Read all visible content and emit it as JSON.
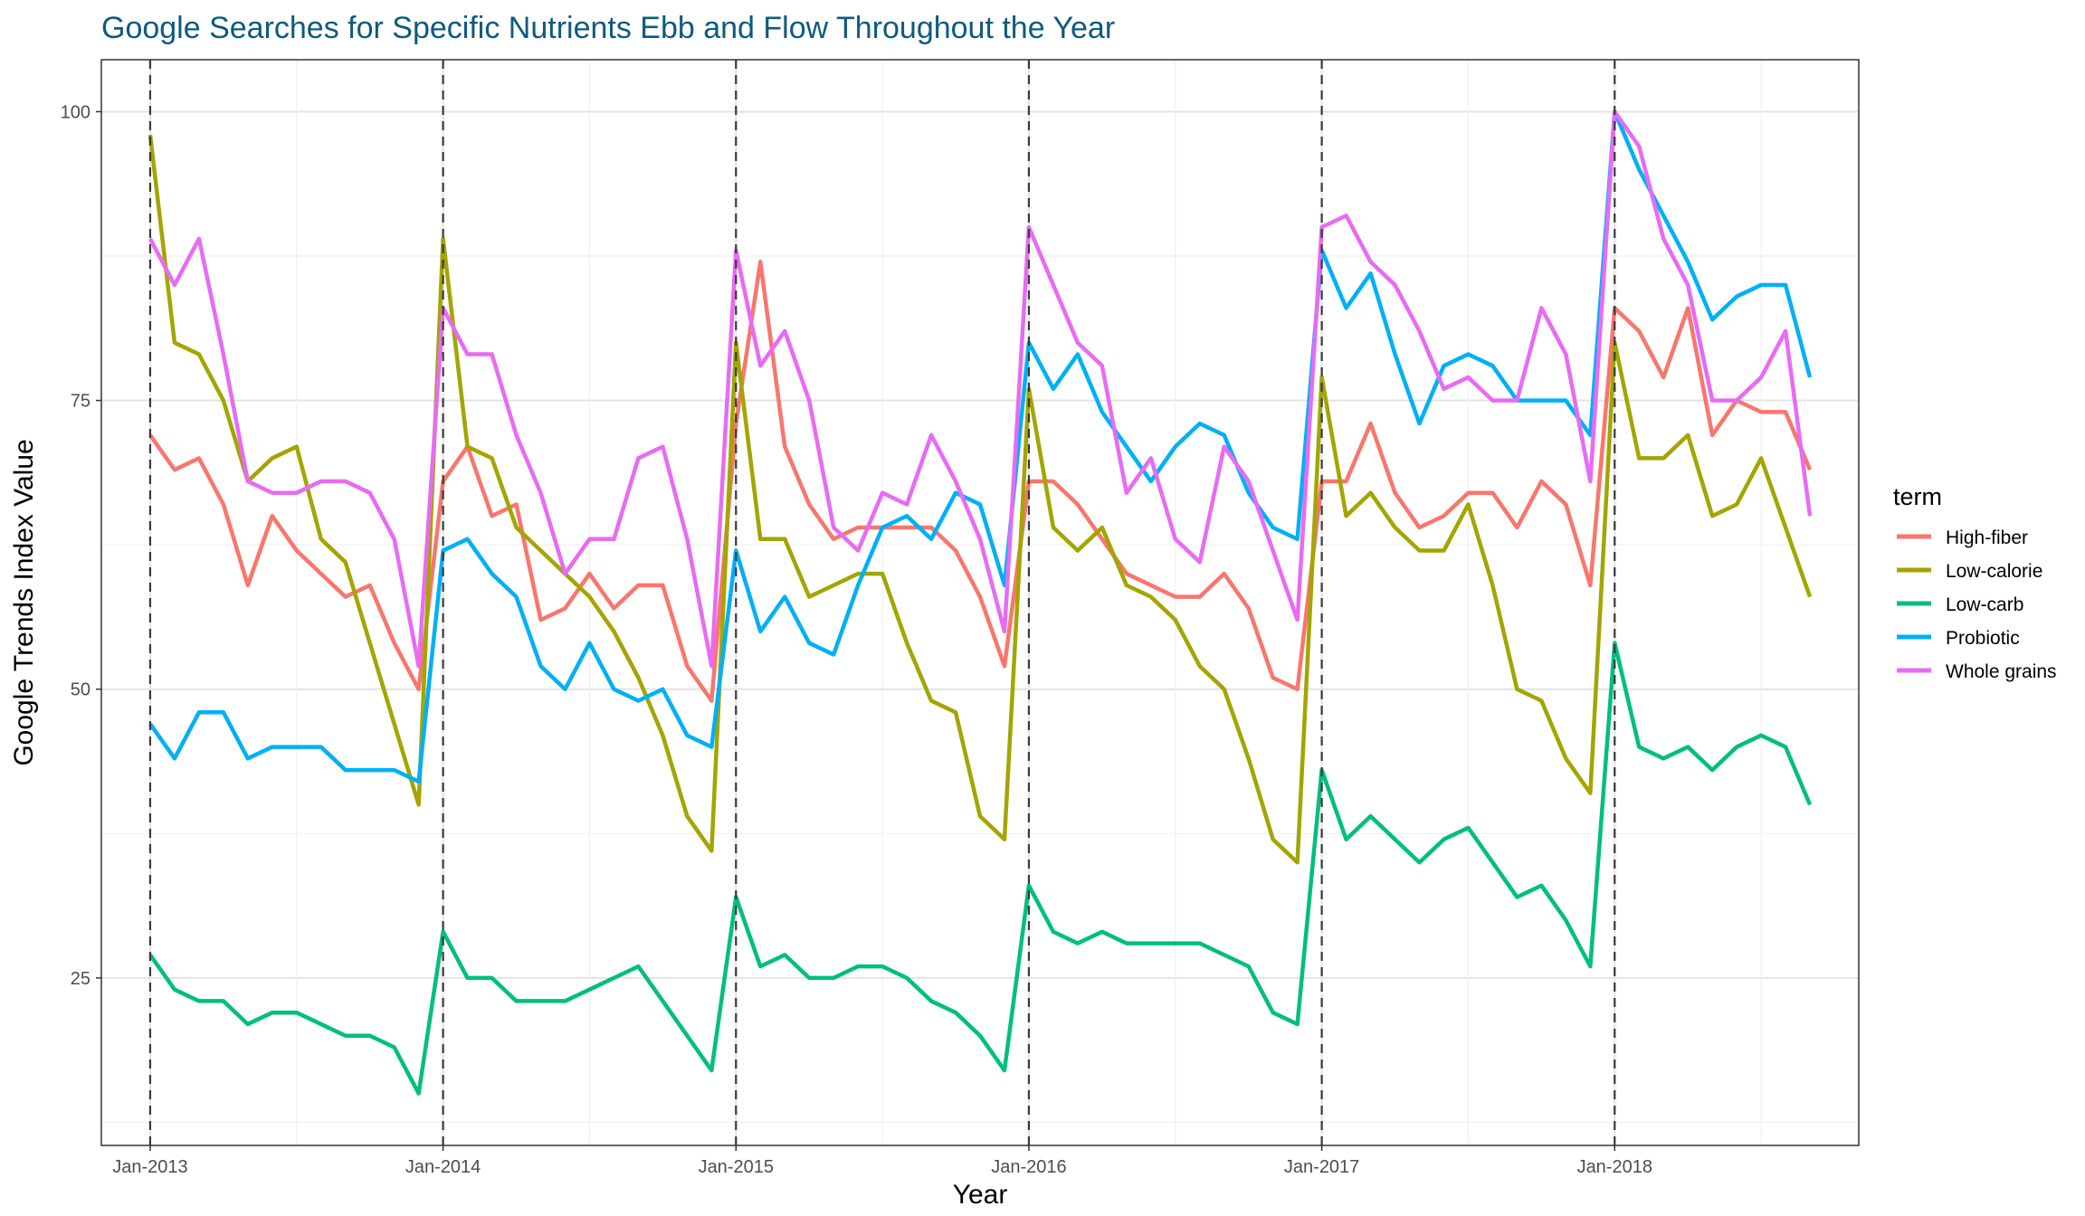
{
  "chart_data": {
    "type": "line",
    "title": "Google Searches for Specific Nutrients Ebb and Flow Throughout the Year",
    "xlabel": "Year",
    "ylabel": "Google Trends Index Value",
    "x_tick_labels": [
      "Jan-2013",
      "Jan-2014",
      "Jan-2015",
      "Jan-2016",
      "Jan-2017",
      "Jan-2018"
    ],
    "y_ticks": [
      25,
      50,
      75,
      100
    ],
    "y_tick_labels": [
      "25",
      "50",
      "75",
      "100"
    ],
    "ylim": [
      10.5,
      104.5
    ],
    "xlim": [
      "2012-11",
      "2018-11"
    ],
    "x": [
      "2013-01",
      "2013-02",
      "2013-03",
      "2013-04",
      "2013-05",
      "2013-06",
      "2013-07",
      "2013-08",
      "2013-09",
      "2013-10",
      "2013-11",
      "2013-12",
      "2014-01",
      "2014-02",
      "2014-03",
      "2014-04",
      "2014-05",
      "2014-06",
      "2014-07",
      "2014-08",
      "2014-09",
      "2014-10",
      "2014-11",
      "2014-12",
      "2015-01",
      "2015-02",
      "2015-03",
      "2015-04",
      "2015-05",
      "2015-06",
      "2015-07",
      "2015-08",
      "2015-09",
      "2015-10",
      "2015-11",
      "2015-12",
      "2016-01",
      "2016-02",
      "2016-03",
      "2016-04",
      "2016-05",
      "2016-06",
      "2016-07",
      "2016-08",
      "2016-09",
      "2016-10",
      "2016-11",
      "2016-12",
      "2017-01",
      "2017-02",
      "2017-03",
      "2017-04",
      "2017-05",
      "2017-06",
      "2017-07",
      "2017-08",
      "2017-09",
      "2017-10",
      "2017-11",
      "2017-12",
      "2018-01",
      "2018-02",
      "2018-03",
      "2018-04",
      "2018-05",
      "2018-06",
      "2018-07",
      "2018-08",
      "2018-09"
    ],
    "vlines": [
      "2013-01",
      "2014-01",
      "2015-01",
      "2016-01",
      "2017-01",
      "2018-01"
    ],
    "grid": true,
    "legend_title": "term",
    "legend_position": "right",
    "series": [
      {
        "name": "High-fiber",
        "color": "#F8766D",
        "values": [
          72,
          69,
          70,
          66,
          59,
          65,
          62,
          60,
          58,
          59,
          54,
          50,
          68,
          71,
          65,
          66,
          56,
          57,
          60,
          57,
          59,
          59,
          52,
          49,
          73,
          87,
          71,
          66,
          63,
          64,
          64,
          64,
          64,
          62,
          58,
          52,
          68,
          68,
          66,
          63,
          60,
          59,
          58,
          58,
          60,
          57,
          51,
          50,
          68,
          68,
          73,
          67,
          64,
          65,
          67,
          67,
          64,
          68,
          66,
          59,
          83,
          81,
          77,
          83,
          72,
          75,
          74,
          74,
          69
        ]
      },
      {
        "name": "Low-calorie",
        "color": "#A3A500",
        "values": [
          98,
          80,
          79,
          75,
          68,
          70,
          71,
          63,
          61,
          54,
          47,
          40,
          89,
          71,
          70,
          64,
          62,
          60,
          58,
          55,
          51,
          46,
          39,
          36,
          80,
          63,
          63,
          58,
          59,
          60,
          60,
          54,
          49,
          48,
          39,
          37,
          76,
          64,
          62,
          64,
          59,
          58,
          56,
          52,
          50,
          44,
          37,
          35,
          77,
          65,
          67,
          64,
          62,
          62,
          66,
          59,
          50,
          49,
          44,
          41,
          80,
          70,
          70,
          72,
          65,
          66,
          70,
          64,
          58
        ]
      },
      {
        "name": "Low-carb",
        "color": "#00BF7D",
        "values": [
          27,
          24,
          23,
          23,
          21,
          22,
          22,
          21,
          20,
          20,
          19,
          15,
          29,
          25,
          25,
          23,
          23,
          23,
          24,
          25,
          26,
          23,
          20,
          17,
          32,
          26,
          27,
          25,
          25,
          26,
          26,
          25,
          23,
          22,
          20,
          17,
          33,
          29,
          28,
          29,
          28,
          28,
          28,
          28,
          27,
          26,
          22,
          21,
          43,
          37,
          39,
          37,
          35,
          37,
          38,
          35,
          32,
          33,
          30,
          26,
          54,
          45,
          44,
          45,
          43,
          45,
          46,
          45,
          40
        ]
      },
      {
        "name": "Probiotic",
        "color": "#00B0F6",
        "values": [
          47,
          44,
          48,
          48,
          44,
          45,
          45,
          45,
          43,
          43,
          43,
          42,
          62,
          63,
          60,
          58,
          52,
          50,
          54,
          50,
          49,
          50,
          46,
          45,
          62,
          55,
          58,
          54,
          53,
          59,
          64,
          65,
          63,
          67,
          66,
          59,
          80,
          76,
          79,
          74,
          71,
          68,
          71,
          73,
          72,
          67,
          64,
          63,
          88,
          83,
          86,
          79,
          73,
          78,
          79,
          78,
          75,
          75,
          75,
          72,
          100,
          95,
          91,
          87,
          82,
          84,
          85,
          85,
          77
        ]
      },
      {
        "name": "Whole grains",
        "color": "#E76BF3",
        "values": [
          89,
          85,
          89,
          79,
          68,
          67,
          67,
          68,
          68,
          67,
          63,
          52,
          83,
          79,
          79,
          72,
          67,
          60,
          63,
          63,
          70,
          71,
          63,
          52,
          88,
          78,
          81,
          75,
          64,
          62,
          67,
          66,
          72,
          68,
          63,
          55,
          90,
          85,
          80,
          78,
          67,
          70,
          63,
          61,
          71,
          68,
          62,
          56,
          90,
          91,
          87,
          85,
          81,
          76,
          77,
          75,
          75,
          83,
          79,
          68,
          100,
          97,
          89,
          85,
          75,
          75,
          77,
          81,
          65
        ]
      }
    ]
  }
}
